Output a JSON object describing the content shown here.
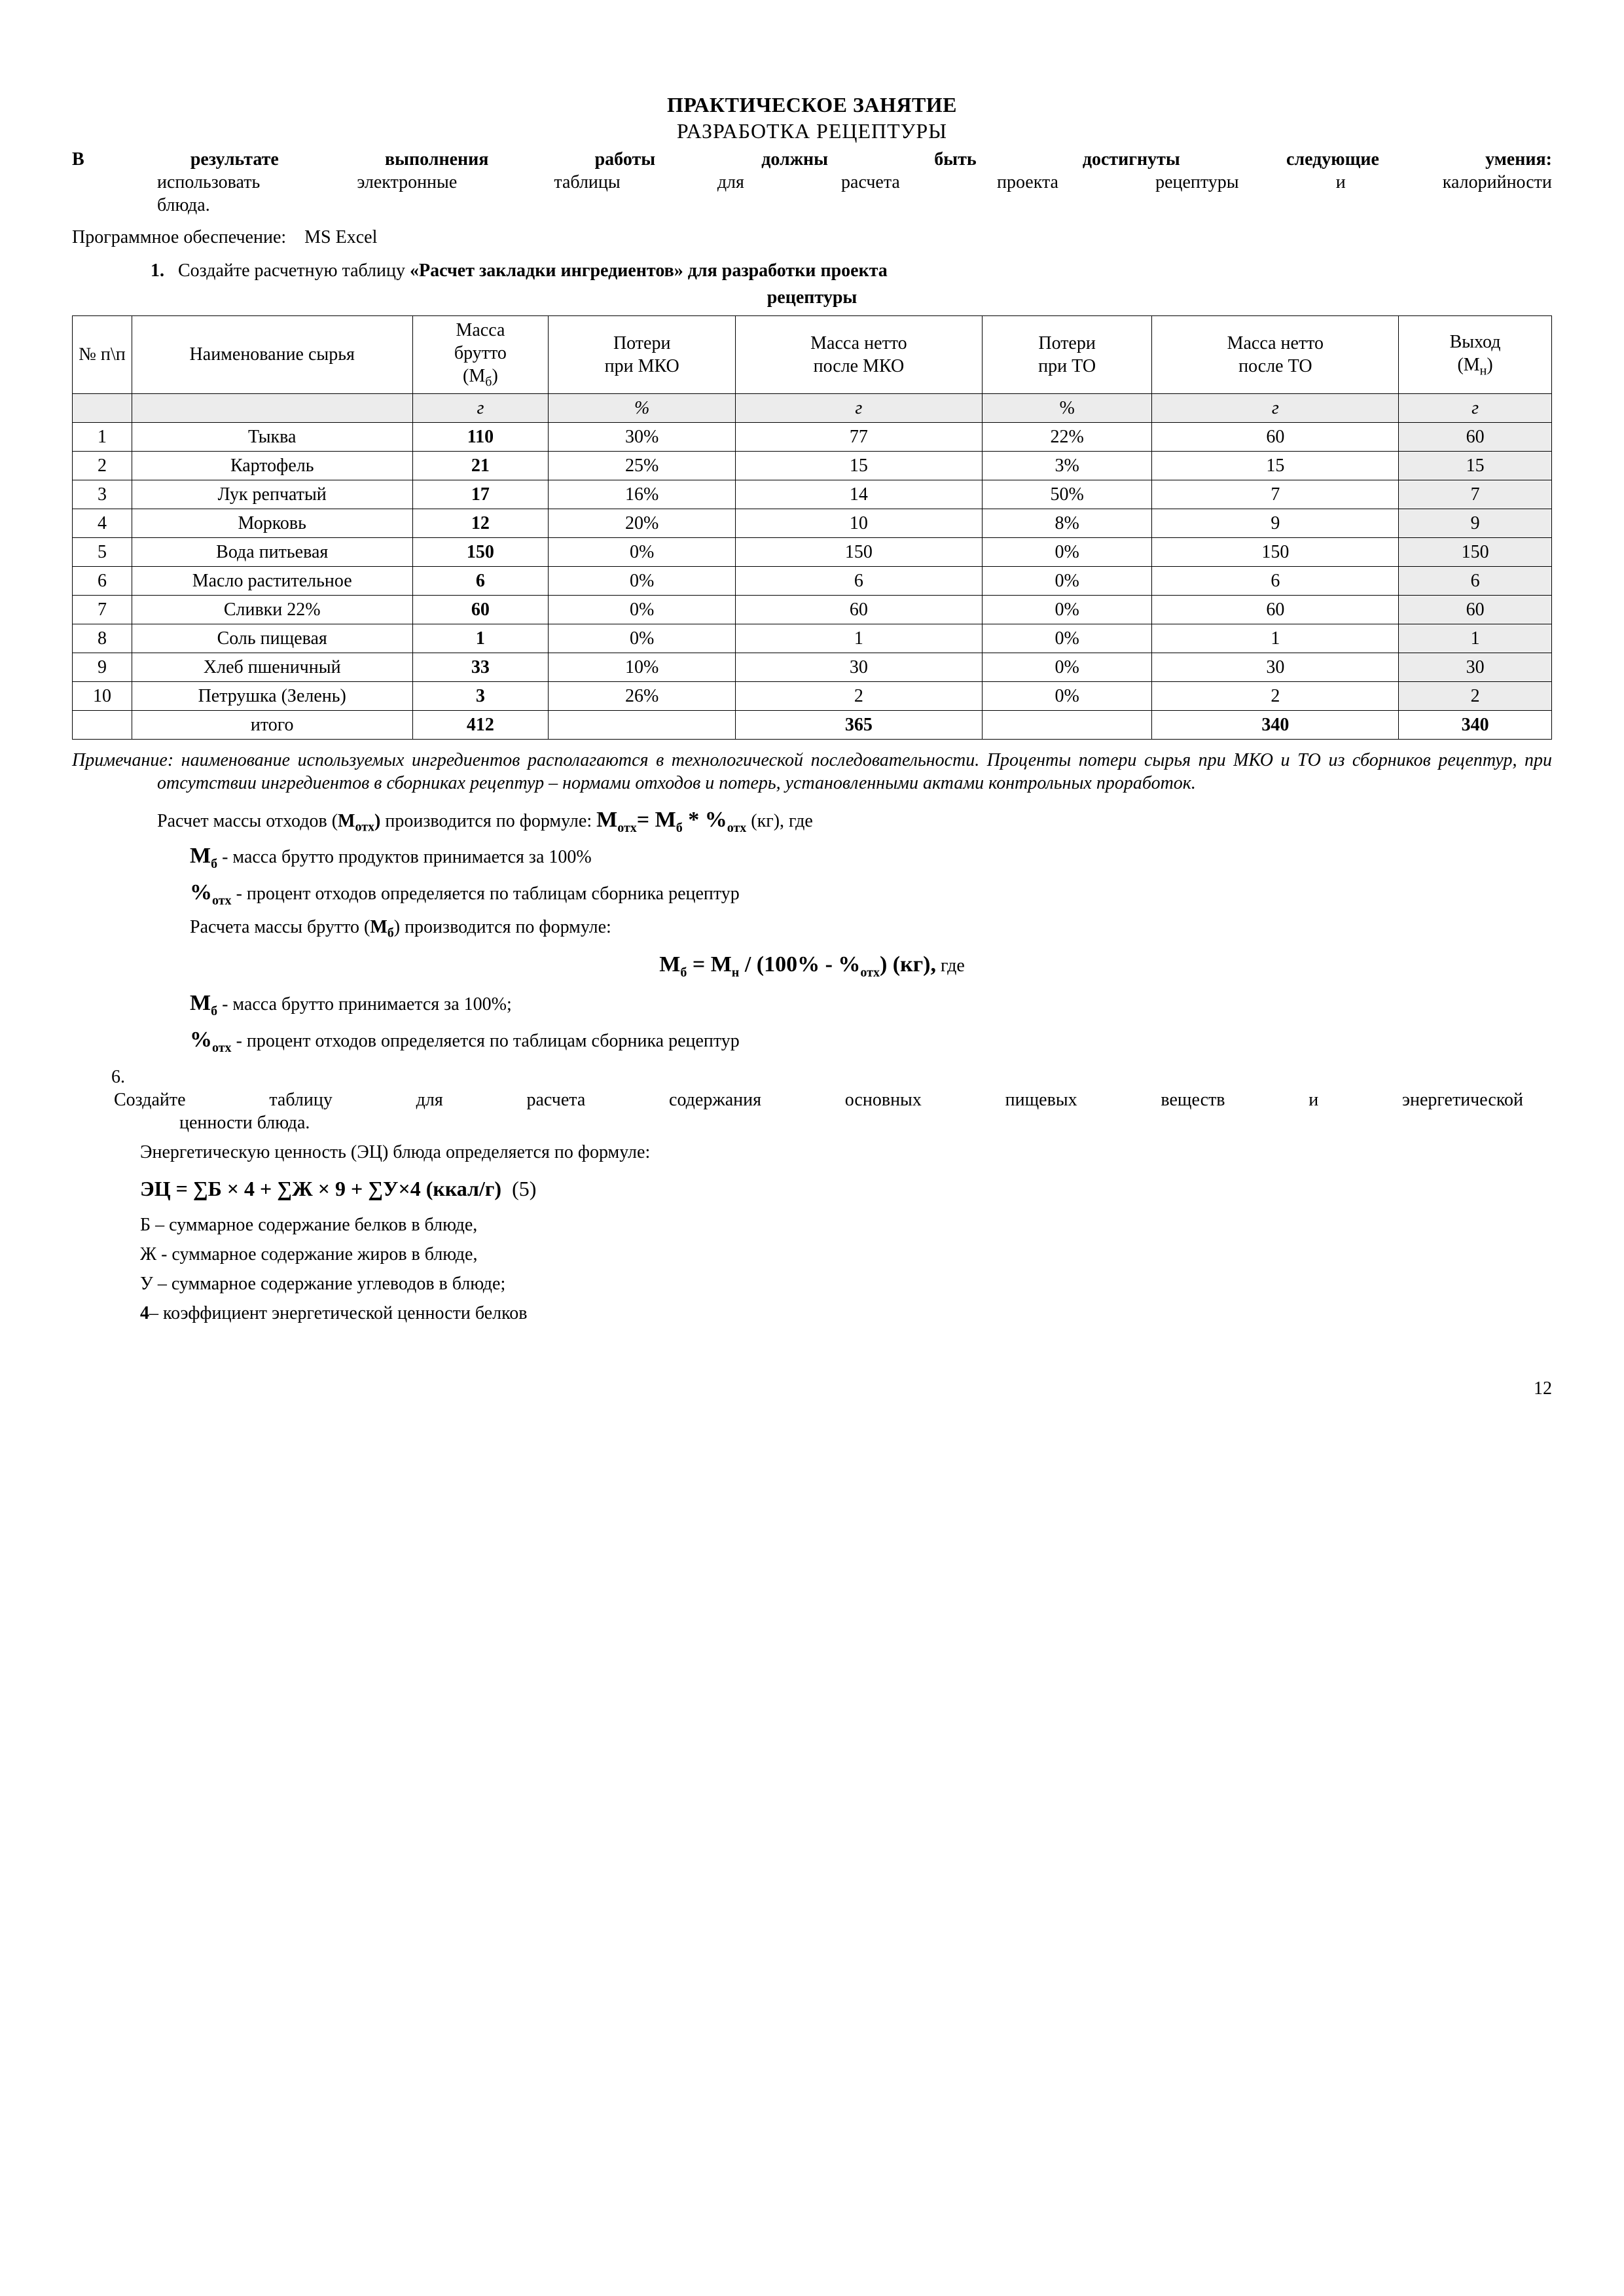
{
  "titles": {
    "line1": "ПРАКТИЧЕСКОЕ ЗАНЯТИЕ",
    "line2": "РАЗРАБОТКА  РЕЦЕПТУРЫ"
  },
  "lead": {
    "bold1": "В",
    "bold_rest": "результате выполнения работы должны быть достигнуты следующие умения:",
    "cont1": "использовать электронные таблицы для расчета проекта рецептуры и калорийности",
    "cont2": "блюда."
  },
  "software": {
    "label": "Программное обеспечение:",
    "value": "MS Excel"
  },
  "task1": {
    "num": "1.",
    "text_a": "Создайте расчетную таблицу ",
    "text_bold": "«Расчет закладки ингредиентов» для разработки проекта",
    "text_sub": "рецептуры"
  },
  "table": {
    "headers": {
      "c1": "№ п\\п",
      "c2": "Наименование сырья",
      "c3a": "Масса",
      "c3b": "брутто",
      "c3c": "(Мб)",
      "c4a": "Потери",
      "c4b": "при МКО",
      "c5a": "Масса нетто",
      "c5b": "после МКО",
      "c6a": "Потери",
      "c6b": "при ТО",
      "c7a": "Масса нетто",
      "c7b": "после ТО",
      "c8a": "Выход",
      "c8b": "(Мн)"
    },
    "units": {
      "u3": "г",
      "u4": "%",
      "u5": "г",
      "u6": "%",
      "u7": "г",
      "u8": "г"
    },
    "rows": [
      {
        "n": "1",
        "name": "Тыква",
        "mb": "110",
        "mko": "30%",
        "nmko": "77",
        "to": "22%",
        "nto": "60",
        "out": "60"
      },
      {
        "n": "2",
        "name": "Картофель",
        "mb": "21",
        "mko": "25%",
        "nmko": "15",
        "to": "3%",
        "nto": "15",
        "out": "15"
      },
      {
        "n": "3",
        "name": "Лук репчатый",
        "mb": "17",
        "mko": "16%",
        "nmko": "14",
        "to": "50%",
        "nto": "7",
        "out": "7"
      },
      {
        "n": "4",
        "name": "Морковь",
        "mb": "12",
        "mko": "20%",
        "nmko": "10",
        "to": "8%",
        "nto": "9",
        "out": "9"
      },
      {
        "n": "5",
        "name": "Вода питьевая",
        "mb": "150",
        "mko": "0%",
        "nmko": "150",
        "to": "0%",
        "nto": "150",
        "out": "150"
      },
      {
        "n": "6",
        "name": "Масло растительное",
        "mb": "6",
        "mko": "0%",
        "nmko": "6",
        "to": "0%",
        "nto": "6",
        "out": "6"
      },
      {
        "n": "7",
        "name": "Сливки 22%",
        "mb": "60",
        "mko": "0%",
        "nmko": "60",
        "to": "0%",
        "nto": "60",
        "out": "60"
      },
      {
        "n": "8",
        "name": "Соль пищевая",
        "mb": "1",
        "mko": "0%",
        "nmko": "1",
        "to": "0%",
        "nto": "1",
        "out": "1"
      },
      {
        "n": "9",
        "name": "Хлеб пшеничный",
        "mb": "33",
        "mko": "10%",
        "nmko": "30",
        "to": "0%",
        "nto": "30",
        "out": "30"
      },
      {
        "n": "10",
        "name": "Петрушка (Зелень)",
        "mb": "3",
        "mko": "26%",
        "nmko": "2",
        "to": "0%",
        "nto": "2",
        "out": "2"
      }
    ],
    "total": {
      "label": "итого",
      "mb": "412",
      "nmko": "365",
      "nto": "340",
      "out": "340"
    }
  },
  "note": {
    "lead": "Примечание: ",
    "text": "наименование используемых ингредиентов располагаются в технологической последовательности. Проценты потери сырья при МКО и ТО из сборников рецептур, при отсутствии ингредиентов в сборниках рецептур – нормами отходов и потерь, установленными актами контрольных проработок."
  },
  "calc": {
    "p1a": "Расчет массы отходов (",
    "p1b": "Мотх)",
    "p1c": "  производится по формуле:  ",
    "f1": "Мотх= Мб * %отх",
    "p1d": " (кг), где",
    "p2": " - масса брутто  продуктов принимается за 100%",
    "p3": " - процент отходов определяется по таблицам сборника рецептур",
    "p4a": "Расчета массы брутто (",
    "p4b": "Мб",
    "p4c": ") производится по формуле:",
    "f2": "Мб = Мн / (100% - %отх) (кг),",
    "f2tail": " где",
    "p5": " - масса брутто принимается за 100%;",
    "p6": "  - процент отходов  определяется по таблицам сборника рецептур"
  },
  "task6": {
    "num": "6.",
    "line1": "Создайте таблицу для расчета содержания основных пищевых веществ и энергетической",
    "line2": "ценности блюда.",
    "line3": "Энергетическую ценность (ЭЦ) блюда определяется по формуле:"
  },
  "ec": {
    "formula": "ЭЦ = ∑Б × 4 + ∑Ж × 9 +  ∑У×4 (ккал/г)",
    "num": "(5)"
  },
  "defs": {
    "d1": "Б – суммарное содержание белков в блюде,",
    "d2": "Ж - суммарное содержание жиров в блюде,",
    "d3": "У – суммарное содержание углеводов в блюде;",
    "d4": "4– коэффициент энергетической ценности белков"
  },
  "symbols": {
    "Mb": "М",
    "Mb_sub": "б",
    "Motx": "М",
    "Motx_sub": "отх",
    "pct": "%",
    "pct_sub": "отх",
    "Mn": "М",
    "Mn_sub": "н"
  },
  "page": "12"
}
